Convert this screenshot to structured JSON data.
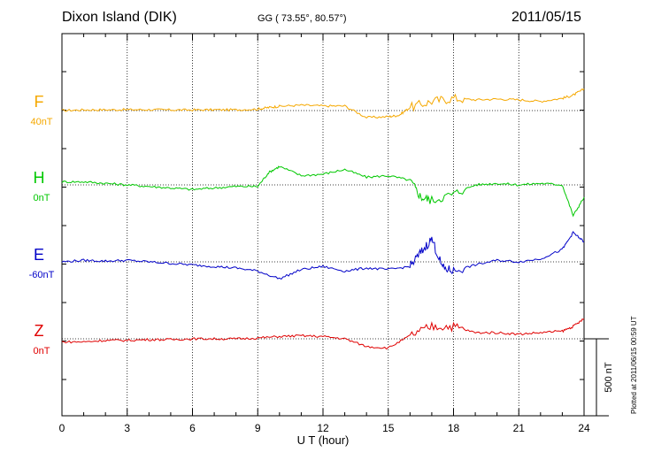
{
  "header": {
    "station": "Dixon Island (DIK)",
    "coords": "GG ( 73.55°,  80.57°)",
    "date": "2011/05/15"
  },
  "side_note": "Plotted at 2011/06/15 00:59 UT",
  "chart_data": {
    "type": "line",
    "title": "Dixon Island (DIK)",
    "xlabel": "U T (hour)",
    "xlim": [
      0,
      24
    ],
    "x_ticks": [
      0,
      3,
      6,
      9,
      12,
      15,
      18,
      21,
      24
    ],
    "x_tick_labels": [
      "0",
      "3",
      "6",
      "9",
      "12",
      "15",
      "18",
      "21",
      "24"
    ],
    "grid": true,
    "scale_bar": {
      "label": "500 nT",
      "value_nT": 500
    },
    "series": [
      {
        "name": "F",
        "baseline": "40nT",
        "color": "#f5a800",
        "points": [
          [
            0,
            0
          ],
          [
            1,
            5
          ],
          [
            2,
            5
          ],
          [
            3,
            6
          ],
          [
            4,
            6
          ],
          [
            5,
            4
          ],
          [
            6,
            4
          ],
          [
            7,
            5
          ],
          [
            8,
            5
          ],
          [
            9,
            10
          ],
          [
            9.5,
            20
          ],
          [
            10,
            28
          ],
          [
            11,
            35
          ],
          [
            12,
            30
          ],
          [
            13,
            30
          ],
          [
            14,
            -45
          ],
          [
            15,
            -40
          ],
          [
            15.5,
            -30
          ],
          [
            16,
            20
          ],
          [
            17,
            60
          ],
          [
            18,
            80
          ],
          [
            19,
            70
          ],
          [
            20,
            75
          ],
          [
            21,
            70
          ],
          [
            22,
            60
          ],
          [
            23,
            80
          ],
          [
            23.5,
            100
          ],
          [
            24,
            140
          ]
        ]
      },
      {
        "name": "H",
        "baseline": "0nT",
        "color": "#00c800",
        "points": [
          [
            0,
            20
          ],
          [
            1,
            20
          ],
          [
            2,
            10
          ],
          [
            3,
            0
          ],
          [
            4,
            -10
          ],
          [
            5,
            -20
          ],
          [
            6,
            -30
          ],
          [
            7,
            -20
          ],
          [
            8,
            -10
          ],
          [
            9,
            -10
          ],
          [
            9.5,
            80
          ],
          [
            10,
            120
          ],
          [
            11,
            60
          ],
          [
            12,
            70
          ],
          [
            13,
            100
          ],
          [
            14,
            50
          ],
          [
            15,
            60
          ],
          [
            16,
            30
          ],
          [
            16.5,
            -80
          ],
          [
            17,
            -100
          ],
          [
            18,
            -60
          ],
          [
            19,
            0
          ],
          [
            20,
            10
          ],
          [
            21,
            0
          ],
          [
            22,
            10
          ],
          [
            23,
            0
          ],
          [
            23.5,
            -200
          ],
          [
            24,
            -80
          ]
        ]
      },
      {
        "name": "E",
        "baseline": "-60nT",
        "color": "#0000c8",
        "points": [
          [
            0,
            0
          ],
          [
            1,
            10
          ],
          [
            2,
            5
          ],
          [
            3,
            10
          ],
          [
            4,
            0
          ],
          [
            5,
            -10
          ],
          [
            6,
            -20
          ],
          [
            7,
            -30
          ],
          [
            8,
            -40
          ],
          [
            9,
            -60
          ],
          [
            10,
            -110
          ],
          [
            11,
            -50
          ],
          [
            12,
            -30
          ],
          [
            13,
            -60
          ],
          [
            14,
            -40
          ],
          [
            15,
            -50
          ],
          [
            16,
            -30
          ],
          [
            16.5,
            60
          ],
          [
            17,
            150
          ],
          [
            17.5,
            -40
          ],
          [
            18,
            -60
          ],
          [
            19,
            -20
          ],
          [
            20,
            10
          ],
          [
            21,
            0
          ],
          [
            22,
            20
          ],
          [
            23,
            80
          ],
          [
            23.5,
            190
          ],
          [
            24,
            130
          ]
        ]
      },
      {
        "name": "Z",
        "baseline": "0nT",
        "color": "#e00000",
        "points": [
          [
            0,
            -20
          ],
          [
            1,
            -20
          ],
          [
            2,
            -10
          ],
          [
            3,
            -10
          ],
          [
            4,
            -5
          ],
          [
            5,
            -5
          ],
          [
            6,
            0
          ],
          [
            7,
            0
          ],
          [
            8,
            0
          ],
          [
            9,
            5
          ],
          [
            10,
            15
          ],
          [
            11,
            20
          ],
          [
            12,
            15
          ],
          [
            13,
            0
          ],
          [
            14,
            -50
          ],
          [
            15,
            -60
          ],
          [
            16,
            20
          ],
          [
            17,
            80
          ],
          [
            18,
            80
          ],
          [
            19,
            40
          ],
          [
            20,
            40
          ],
          [
            21,
            30
          ],
          [
            22,
            40
          ],
          [
            23,
            50
          ],
          [
            23.5,
            80
          ],
          [
            24,
            130
          ]
        ]
      }
    ]
  }
}
